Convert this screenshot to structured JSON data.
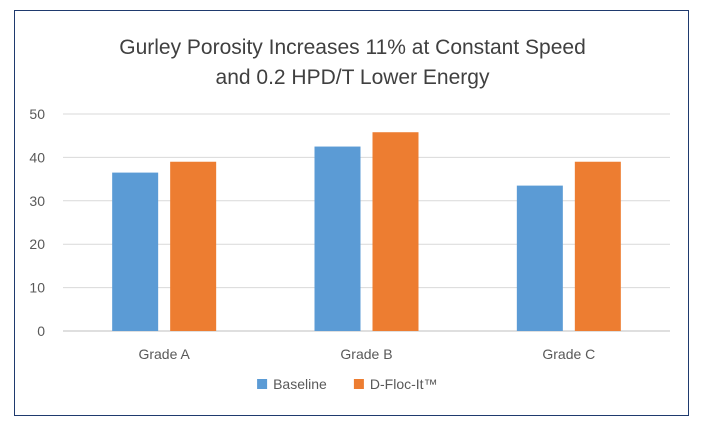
{
  "chart_data": {
    "type": "bar",
    "title_lines": [
      "Gurley Porosity Increases 11% at Constant Speed",
      "and 0.2 HPD/T Lower Energy"
    ],
    "categories": [
      "Grade A",
      "Grade B",
      "Grade C"
    ],
    "series": [
      {
        "name": "Baseline",
        "values": [
          36.5,
          42.5,
          33.5
        ],
        "color": "#5b9bd5"
      },
      {
        "name": "D-Floc-It™",
        "values": [
          39,
          45.8,
          39
        ],
        "color": "#ed7d31"
      }
    ],
    "yticks": [
      0,
      10,
      20,
      30,
      40,
      50
    ],
    "ylim": [
      0,
      50
    ],
    "xlabel": "",
    "ylabel": "",
    "grid": true,
    "legend": "bottom-center"
  }
}
